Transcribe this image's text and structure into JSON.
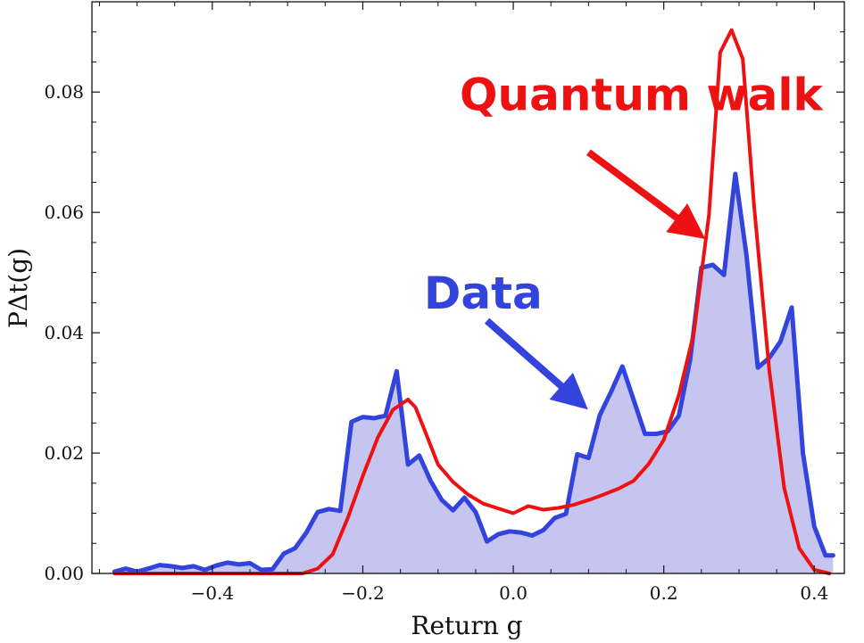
{
  "chart_data": {
    "type": "line",
    "xlabel": "Return g",
    "ylabel": "PΔt(g)",
    "xlim": [
      -0.56,
      0.44
    ],
    "ylim": [
      0,
      0.095
    ],
    "xticks": [
      -0.4,
      -0.2,
      0.0,
      0.2,
      0.4
    ],
    "xtick_labels": [
      "−0.4",
      "−0.2",
      "0.0",
      "0.2",
      "0.4"
    ],
    "yticks": [
      0.0,
      0.02,
      0.04,
      0.06,
      0.08
    ],
    "ytick_labels": [
      "0.00",
      "0.02",
      "0.04",
      "0.06",
      "0.08"
    ],
    "grid": false,
    "legend": "none",
    "series": [
      {
        "name": "Data",
        "color": "#3344dd",
        "fill": "#c5c5ef",
        "x": [
          -0.53,
          -0.515,
          -0.5,
          -0.485,
          -0.47,
          -0.455,
          -0.44,
          -0.425,
          -0.41,
          -0.395,
          -0.38,
          -0.365,
          -0.35,
          -0.335,
          -0.32,
          -0.305,
          -0.29,
          -0.275,
          -0.26,
          -0.245,
          -0.23,
          -0.215,
          -0.2,
          -0.185,
          -0.17,
          -0.155,
          -0.14,
          -0.125,
          -0.11,
          -0.095,
          -0.08,
          -0.065,
          -0.05,
          -0.035,
          -0.02,
          -0.005,
          0.01,
          0.025,
          0.04,
          0.055,
          0.07,
          0.085,
          0.1,
          0.115,
          0.13,
          0.145,
          0.16,
          0.175,
          0.19,
          0.205,
          0.22,
          0.235,
          0.25,
          0.265,
          0.28,
          0.295,
          0.31,
          0.325,
          0.34,
          0.355,
          0.37,
          0.385,
          0.4,
          0.415,
          0.425
        ],
        "values": [
          0.0003,
          0.0008,
          0.0003,
          0.0008,
          0.0014,
          0.0012,
          0.0009,
          0.0012,
          0.0006,
          0.0013,
          0.0018,
          0.0015,
          0.0017,
          0.0006,
          0.0007,
          0.0033,
          0.0042,
          0.0068,
          0.0102,
          0.0107,
          0.0104,
          0.0252,
          0.026,
          0.0258,
          0.0262,
          0.0336,
          0.0181,
          0.0196,
          0.0154,
          0.0122,
          0.0105,
          0.0126,
          0.0102,
          0.0053,
          0.0065,
          0.007,
          0.0068,
          0.0063,
          0.0072,
          0.0092,
          0.0099,
          0.0198,
          0.0192,
          0.0263,
          0.0302,
          0.0344,
          0.0288,
          0.0232,
          0.0232,
          0.0236,
          0.0262,
          0.0355,
          0.0508,
          0.0513,
          0.0496,
          0.0664,
          0.0528,
          0.0342,
          0.0358,
          0.0385,
          0.0442,
          0.02,
          0.0078,
          0.003,
          0.003
        ]
      },
      {
        "name": "Quantum walk",
        "color": "#ee1111",
        "x": [
          -0.53,
          -0.28,
          -0.26,
          -0.24,
          -0.22,
          -0.2,
          -0.18,
          -0.16,
          -0.14,
          -0.13,
          -0.12,
          -0.1,
          -0.08,
          -0.06,
          -0.04,
          -0.02,
          0.0,
          0.02,
          0.04,
          0.06,
          0.08,
          0.1,
          0.12,
          0.14,
          0.16,
          0.18,
          0.2,
          0.22,
          0.24,
          0.26,
          0.275,
          0.29,
          0.305,
          0.32,
          0.34,
          0.36,
          0.38,
          0.4,
          0.42
        ],
        "values": [
          0.0,
          0.0,
          0.0008,
          0.0032,
          0.0092,
          0.0162,
          0.0226,
          0.0272,
          0.0289,
          0.0276,
          0.0245,
          0.0181,
          0.0152,
          0.0131,
          0.0116,
          0.0108,
          0.01,
          0.0112,
          0.0106,
          0.0109,
          0.0114,
          0.0122,
          0.0131,
          0.0141,
          0.0154,
          0.0182,
          0.0222,
          0.0296,
          0.04,
          0.0596,
          0.0866,
          0.0903,
          0.0855,
          0.0612,
          0.034,
          0.0142,
          0.0042,
          0.0006,
          0.0
        ]
      }
    ],
    "annotations": [
      {
        "text": "Quantum walk",
        "color": "#ee1111",
        "x": 0.17,
        "y": 0.077,
        "arrow_from": [
          0.1,
          0.07
        ],
        "arrow_to": [
          0.24,
          0.057
        ]
      },
      {
        "text": "Data",
        "color": "#3344dd",
        "x": -0.04,
        "y": 0.044,
        "arrow_from": [
          -0.035,
          0.042
        ],
        "arrow_to": [
          0.085,
          0.0288
        ]
      }
    ]
  }
}
